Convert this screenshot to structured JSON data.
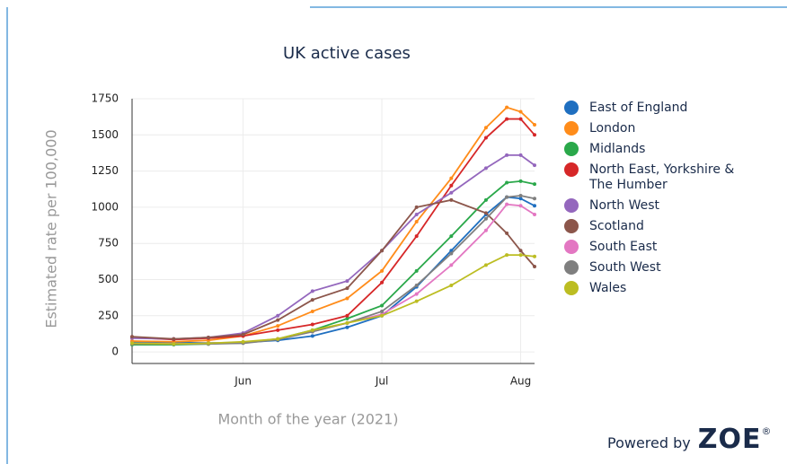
{
  "chart_data": {
    "type": "line",
    "title": "UK active cases",
    "xlabel": "Month of the year (2021)",
    "ylabel": "Estimated rate per 100,000",
    "x": [
      5.2,
      5.5,
      5.75,
      6,
      6.25,
      6.5,
      6.75,
      7,
      7.25,
      7.5,
      7.75,
      7.9,
      8,
      8.1
    ],
    "xlim": [
      5.2,
      8.1
    ],
    "xticks": [
      {
        "value": 6,
        "label": "Jun"
      },
      {
        "value": 7,
        "label": "Jul"
      },
      {
        "value": 8,
        "label": "Aug"
      }
    ],
    "ylim": [
      -80,
      1750
    ],
    "yticks": [
      0,
      250,
      500,
      750,
      1000,
      1250,
      1500,
      1750
    ],
    "grid": true,
    "series": [
      {
        "name": "East of England",
        "color": "#1f6fc0",
        "values": [
          70,
          65,
          62,
          65,
          80,
          110,
          170,
          250,
          450,
          700,
          950,
          1070,
          1060,
          1010
        ]
      },
      {
        "name": "London",
        "color": "#ff8c1a",
        "values": [
          75,
          70,
          80,
          110,
          180,
          280,
          370,
          560,
          900,
          1200,
          1550,
          1690,
          1660,
          1570
        ]
      },
      {
        "name": "Midlands",
        "color": "#2aa84a",
        "values": [
          50,
          50,
          55,
          65,
          90,
          150,
          230,
          320,
          560,
          800,
          1050,
          1170,
          1180,
          1160
        ]
      },
      {
        "name": "North East, Yorkshire & The Humber",
        "color": "#d62728",
        "values": [
          100,
          85,
          95,
          110,
          150,
          190,
          250,
          480,
          800,
          1150,
          1480,
          1610,
          1610,
          1500
        ]
      },
      {
        "name": "North West",
        "color": "#9467bd",
        "values": [
          95,
          90,
          100,
          130,
          250,
          420,
          490,
          700,
          950,
          1100,
          1270,
          1360,
          1360,
          1290
        ]
      },
      {
        "name": "Scotland",
        "color": "#8c564b",
        "values": [
          105,
          90,
          100,
          120,
          220,
          360,
          440,
          700,
          1000,
          1050,
          960,
          820,
          700,
          590
        ]
      },
      {
        "name": "South East",
        "color": "#e377c2",
        "values": [
          60,
          55,
          60,
          65,
          90,
          140,
          200,
          260,
          400,
          600,
          840,
          1020,
          1010,
          950
        ]
      },
      {
        "name": "South West",
        "color": "#7f7f7f",
        "values": [
          55,
          55,
          55,
          60,
          85,
          140,
          200,
          280,
          460,
          680,
          920,
          1070,
          1080,
          1060
        ]
      },
      {
        "name": "Wales",
        "color": "#bcbd22",
        "values": [
          60,
          55,
          60,
          70,
          90,
          150,
          200,
          250,
          350,
          460,
          600,
          670,
          670,
          660
        ]
      }
    ]
  },
  "footer": {
    "text": "Powered by",
    "logo": "ZOE",
    "mark": "®"
  }
}
